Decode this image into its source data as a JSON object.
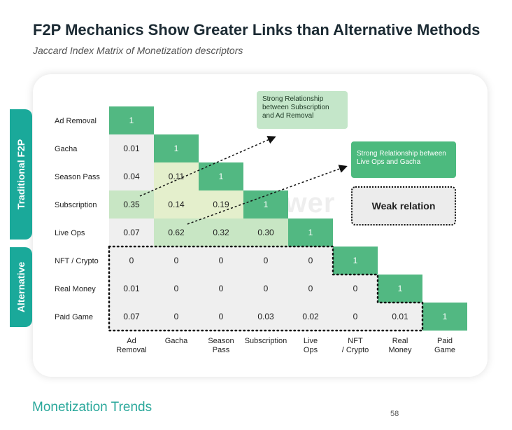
{
  "header": {
    "title": "F2P Mechanics Show Greater Links than Alternative Methods",
    "subtitle": "Jaccard Index Matrix of Monetization descriptors"
  },
  "side_tabs": {
    "traditional": "Traditional F2P",
    "alternative": "Alternative"
  },
  "callouts": {
    "subscription_ad_removal": "Strong Relationship between Subscription and Ad Removal",
    "liveops_gacha": "Strong Relationship between Live Ops and Gacha",
    "weak": "Weak relation"
  },
  "watermark": "SensorTower",
  "footer": {
    "section": "Monetization Trends",
    "page_number": "58"
  },
  "chart_data": {
    "type": "heatmap",
    "title": "F2P Mechanics Show Greater Links than Alternative Methods",
    "subtitle": "Jaccard Index Matrix of Monetization descriptors",
    "rows": [
      "Ad Removal",
      "Gacha",
      "Season Pass",
      "Subscription",
      "Live Ops",
      "NFT / Crypto",
      "Real Money",
      "Paid Game"
    ],
    "columns": [
      [
        "Ad",
        "Removal"
      ],
      [
        "Gacha"
      ],
      [
        "Season",
        "Pass"
      ],
      [
        "Subscription"
      ],
      [
        "Live",
        "Ops"
      ],
      [
        "NFT",
        "/ Crypto"
      ],
      [
        "Real",
        "Money"
      ],
      [
        "Paid",
        "Game"
      ]
    ],
    "values": [
      [
        1
      ],
      [
        0.01,
        1
      ],
      [
        0.04,
        0.11,
        1
      ],
      [
        0.35,
        0.14,
        0.19,
        1
      ],
      [
        0.07,
        0.62,
        0.32,
        0.3,
        1
      ],
      [
        0,
        0,
        0,
        0,
        0,
        1
      ],
      [
        0.01,
        0,
        0,
        0,
        0,
        0,
        1
      ],
      [
        0.07,
        0,
        0,
        0.03,
        0.02,
        0,
        0.01,
        1
      ]
    ],
    "labels": [
      [
        "1"
      ],
      [
        "0.01",
        "1"
      ],
      [
        "0.04",
        "0.11",
        "1"
      ],
      [
        "0.35",
        "0.14",
        "0.19",
        "1"
      ],
      [
        "0.07",
        "0.62",
        "0.32",
        "0.30",
        "1"
      ],
      [
        "0",
        "0",
        "0",
        "0",
        "0",
        "1"
      ],
      [
        "0.01",
        "0",
        "0",
        "0",
        "0",
        "0",
        "1"
      ],
      [
        "0.07",
        "0",
        "0",
        "0.03",
        "0.02",
        "0",
        "0.01",
        "1"
      ]
    ],
    "colors": {
      "diagonal": "#52b882",
      "strong": "#c8e6c4",
      "medium": "#e4efcc",
      "weak_tint": "#f4f4d8",
      "zero": "#efefef",
      "accent": "#1aa99a"
    }
  }
}
